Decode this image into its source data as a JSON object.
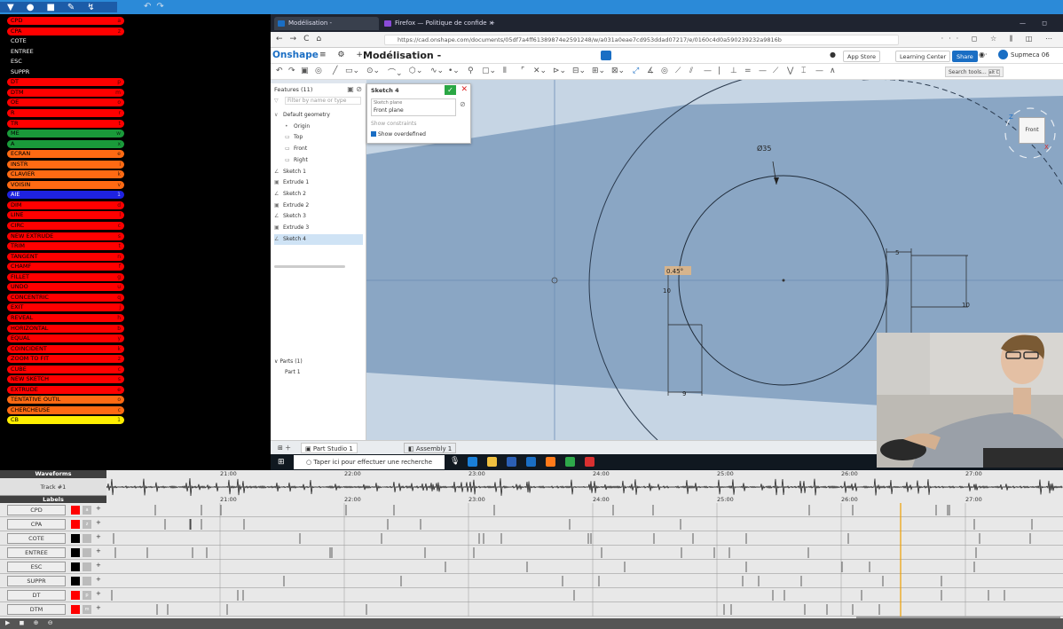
{
  "toolbar": {
    "icons": [
      "app-icon",
      "record-icon",
      "save-icon",
      "pen-icon",
      "cursor-icon",
      "undo-icon",
      "redo-icon"
    ]
  },
  "label_panel": {
    "items": [
      {
        "name": "CPD",
        "key": "a",
        "color": "#ff0000"
      },
      {
        "name": "CPA",
        "key": "z",
        "color": "#ff0000"
      },
      {
        "name": "COTE",
        "key": "",
        "color": "#000000"
      },
      {
        "name": "ENTREE",
        "key": "",
        "color": "#000000"
      },
      {
        "name": "ESC",
        "key": "",
        "color": "#000000"
      },
      {
        "name": "SUPPR",
        "key": "",
        "color": "#000000"
      },
      {
        "name": "DT",
        "key": "p",
        "color": "#ff0000"
      },
      {
        "name": "DTM",
        "key": "m",
        "color": "#ff0000"
      },
      {
        "name": "OE",
        "key": "o",
        "color": "#ff0000"
      },
      {
        "name": "R",
        "key": "r",
        "color": "#ff0000"
      },
      {
        "name": "TR",
        "key": "t",
        "color": "#ff0000"
      },
      {
        "name": "ME",
        "key": "w",
        "color": "#1a9a3a"
      },
      {
        "name": "A",
        "key": "x",
        "color": "#1a9a3a"
      },
      {
        "name": "ECRAN",
        "key": "e",
        "color": "#ff6a13"
      },
      {
        "name": "INSTR",
        "key": "i",
        "color": "#ff6a13"
      },
      {
        "name": "CLAVIER",
        "key": "k",
        "color": "#ff6a13"
      },
      {
        "name": "VOISIN",
        "key": "v",
        "color": "#ff6a13"
      },
      {
        "name": "AIE",
        "key": "1",
        "color": "#1e22e0"
      },
      {
        "name": "DIM",
        "key": "d",
        "color": "#ff0000"
      },
      {
        "name": "LINE",
        "key": "l",
        "color": "#ff0000"
      },
      {
        "name": "CIRC",
        "key": "c",
        "color": "#ff0000"
      },
      {
        "name": "NEW EXTRUDE",
        "key": "s",
        "color": "#ff0000"
      },
      {
        "name": "TRIM",
        "key": "t",
        "color": "#ff0000"
      },
      {
        "name": "TANGENT",
        "key": "n",
        "color": "#ff0000"
      },
      {
        "name": "CHAMF",
        "key": "f",
        "color": "#ff0000"
      },
      {
        "name": "FILLET",
        "key": "g",
        "color": "#ff0000"
      },
      {
        "name": "UNDO",
        "key": "u",
        "color": "#ff0000"
      },
      {
        "name": "CONCENTRIC",
        "key": "q",
        "color": "#ff0000"
      },
      {
        "name": "EXIT",
        "key": "j",
        "color": "#ff0000"
      },
      {
        "name": "REVEAL",
        "key": "h",
        "color": "#ff0000"
      },
      {
        "name": "HORIZONTAL",
        "key": "b",
        "color": "#ff0000"
      },
      {
        "name": "EQUAL",
        "key": "y",
        "color": "#ff0000"
      },
      {
        "name": "COINCIDENT",
        "key": "k",
        "color": "#ff0000"
      },
      {
        "name": "ZOOM TO FIT",
        "key": "z",
        "color": "#ff0000"
      },
      {
        "name": "CUBE",
        "key": "c",
        "color": "#ff0000"
      },
      {
        "name": "NEW SKETCH",
        "key": "s",
        "color": "#ff0000"
      },
      {
        "name": "EXTRUDE",
        "key": "e",
        "color": "#ff0000"
      },
      {
        "name": "TENTATIVE OUTIL",
        "key": "o",
        "color": "#ff6a13"
      },
      {
        "name": "CHERCHEUSE",
        "key": "c",
        "color": "#ff6a13"
      },
      {
        "name": "CB",
        "key": "1",
        "color": "#ffee00"
      }
    ]
  },
  "browser": {
    "tabs": [
      {
        "label": "Modélisation -",
        "active": true
      },
      {
        "label": "Firefox — Politique de confide",
        "active": false
      }
    ],
    "new_tab": "+",
    "url": "https://cad.onshape.com/documents/05df7a4ff61389874e2591248/w/a031a0eae7cd953ddad07217/e/0160c4d0a590239232a9816b",
    "window_controls": "— ◻"
  },
  "onshape": {
    "logo": "Onshape",
    "doc_title": "Modélisation -",
    "app_store": "App Store",
    "learning": "Learning Center",
    "share": "Share",
    "user": "Supmeca 06",
    "search_tools": "Search tools...",
    "search_shortcut": "alt C"
  },
  "features": {
    "title": "Features (11)",
    "filter_placeholder": "Filter by name or type",
    "items": [
      {
        "label": "Default geometry",
        "indent": 0,
        "glyph": "∨"
      },
      {
        "label": "Origin",
        "indent": 1,
        "glyph": "•"
      },
      {
        "label": "Top",
        "indent": 1,
        "glyph": "▭"
      },
      {
        "label": "Front",
        "indent": 1,
        "glyph": "▭"
      },
      {
        "label": "Right",
        "indent": 1,
        "glyph": "▭"
      },
      {
        "label": "Sketch 1",
        "indent": 0,
        "glyph": "∠"
      },
      {
        "label": "Extrude 1",
        "indent": 0,
        "glyph": "▣"
      },
      {
        "label": "Sketch 2",
        "indent": 0,
        "glyph": "∠"
      },
      {
        "label": "Extrude 2",
        "indent": 0,
        "glyph": "▣"
      },
      {
        "label": "Sketch 3",
        "indent": 0,
        "glyph": "∠"
      },
      {
        "label": "Extrude 3",
        "indent": 0,
        "glyph": "▣"
      },
      {
        "label": "Sketch 4",
        "indent": 0,
        "glyph": "∠",
        "selected": true
      }
    ],
    "parts_header": "Parts (1)",
    "parts": [
      "Part 1"
    ]
  },
  "sketch_dialog": {
    "title": "Sketch 4",
    "plane_label": "Sketch plane",
    "plane_value": "Front plane",
    "show_constraints": "Show constraints",
    "show_overdefined": "Show overdefined"
  },
  "canvas": {
    "dim_diameter": "Ø35",
    "dim_5": "5",
    "dim_10_left": "10",
    "dim_10_right": "10",
    "dim_9": "9",
    "dim_highlight": "0.45°",
    "view_cube": "Front",
    "axis_z": "Z",
    "axis_x": "X"
  },
  "bottom_tabs": {
    "part_studio": "Part Studio 1",
    "assembly": "Assembly 1"
  },
  "taskbar": {
    "search_text": "Taper ici pour effectuer une recherche",
    "apps": [
      {
        "name": "edge",
        "color": "#1a7fd8"
      },
      {
        "name": "explorer",
        "color": "#f0c040"
      },
      {
        "name": "store",
        "color": "#2b5fb5"
      },
      {
        "name": "mail",
        "color": "#1a6ec4"
      },
      {
        "name": "firefox",
        "color": "#ff7a1a"
      },
      {
        "name": "camtasia",
        "color": "#2ea84a"
      },
      {
        "name": "recorder",
        "color": "#d83030"
      }
    ]
  },
  "waveforms": {
    "header": "Waveforms",
    "track": "Track #1",
    "labels_header": "Labels",
    "times": [
      "21:00",
      "22:00",
      "23:00",
      "24:00",
      "25:00",
      "26:00",
      "27:00"
    ],
    "rows": [
      {
        "name": "CPD",
        "color": "#ff0000",
        "key": "a"
      },
      {
        "name": "CPA",
        "color": "#ff0000",
        "key": "z"
      },
      {
        "name": "COTE",
        "color": "#000000",
        "key": ""
      },
      {
        "name": "ENTREE",
        "color": "#000000",
        "key": ""
      },
      {
        "name": "ESC",
        "color": "#000000",
        "key": ""
      },
      {
        "name": "SUPPR",
        "color": "#000000",
        "key": ""
      },
      {
        "name": "DT",
        "color": "#ff0000",
        "key": "p"
      },
      {
        "name": "DTM",
        "color": "#ff0000",
        "key": "m"
      }
    ]
  }
}
